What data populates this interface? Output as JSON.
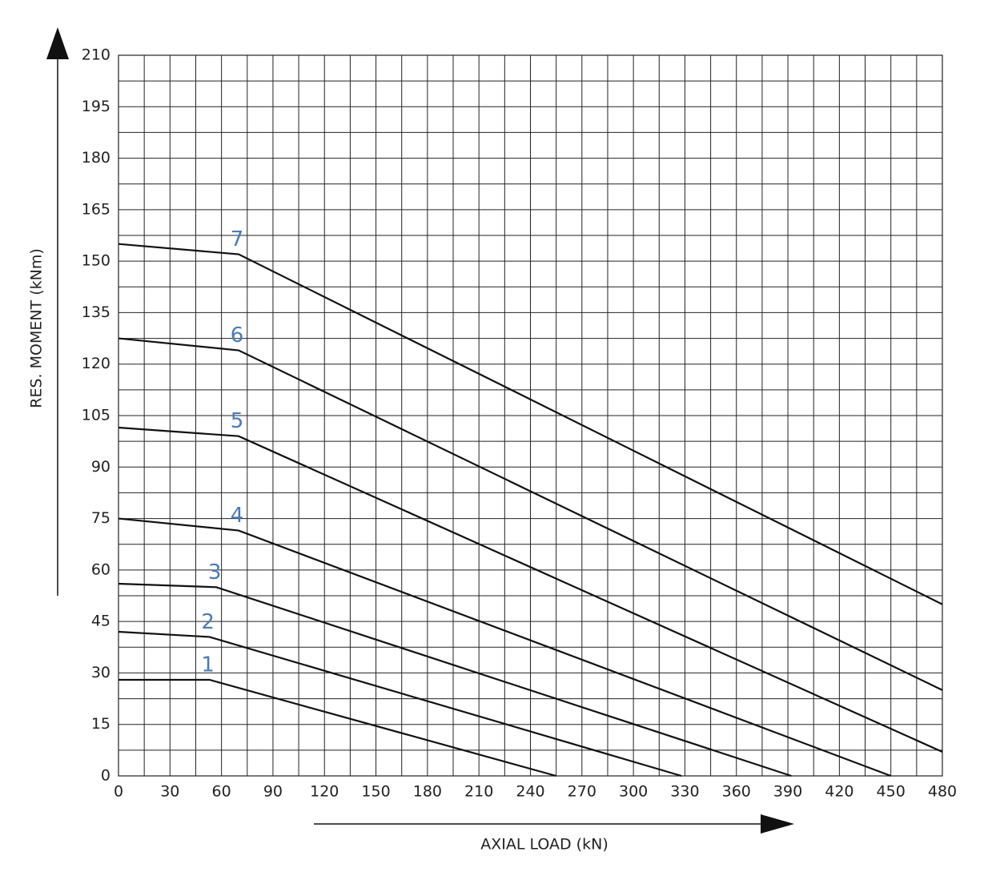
{
  "chart_data": {
    "type": "line",
    "xlabel": "AXIAL LOAD (kN)",
    "ylabel": "RES. MOMENT (kNm)",
    "xlim": [
      0,
      480
    ],
    "xticks": [
      0,
      30,
      60,
      90,
      120,
      150,
      180,
      210,
      240,
      270,
      300,
      330,
      360,
      390,
      420,
      450,
      480
    ],
    "ylim": [
      0,
      210
    ],
    "yticks": [
      0,
      15,
      30,
      45,
      60,
      75,
      90,
      105,
      120,
      135,
      150,
      165,
      180,
      195,
      210
    ],
    "grid": true,
    "color": "#111111",
    "label_color": "#4a7ab5",
    "series": [
      {
        "name": "1",
        "x": [
          0,
          53,
          255
        ],
        "values": [
          28,
          28,
          0
        ]
      },
      {
        "name": "2",
        "x": [
          0,
          53,
          328
        ],
        "values": [
          42,
          40.5,
          0
        ]
      },
      {
        "name": "3",
        "x": [
          0,
          57,
          392
        ],
        "values": [
          56,
          55,
          0
        ]
      },
      {
        "name": "4",
        "x": [
          0,
          70,
          450
        ],
        "values": [
          75,
          71.5,
          0
        ]
      },
      {
        "name": "5",
        "x": [
          0,
          70,
          480
        ],
        "values": [
          101.5,
          99,
          7
        ]
      },
      {
        "name": "6",
        "x": [
          0,
          70,
          480
        ],
        "values": [
          127.5,
          124,
          25
        ]
      },
      {
        "name": "7",
        "x": [
          0,
          70,
          480
        ],
        "values": [
          155,
          152,
          50
        ]
      }
    ]
  }
}
